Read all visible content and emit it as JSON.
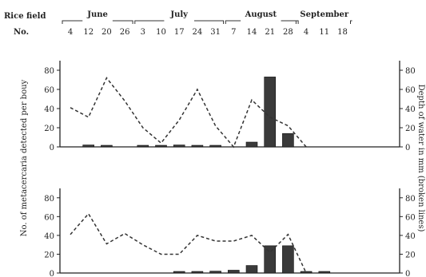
{
  "header": {
    "row_label_line1": "Rice field",
    "row_label_line2": "No.",
    "months": [
      "June",
      "July",
      "August",
      "September"
    ]
  },
  "y_label_left": "No. of metacercaria detected per bouy",
  "y_label_right": "Depth of water in mm (broken lines)",
  "chart_data": [
    {
      "type": "bar",
      "panel": "upper",
      "categories": [
        "4",
        "12",
        "20",
        "26",
        "3",
        "10",
        "17",
        "24",
        "31",
        "7",
        "14",
        "21",
        "28",
        "4",
        "11",
        "18"
      ],
      "category_months": [
        "June",
        "June",
        "June",
        "June",
        "July",
        "July",
        "July",
        "July",
        "July",
        "August",
        "August",
        "August",
        "August",
        "September",
        "September",
        "September"
      ],
      "yticks": [
        0,
        20,
        40,
        60,
        80
      ],
      "y2ticks": [
        0,
        20,
        40,
        60,
        80
      ],
      "ylim": [
        0,
        90
      ],
      "series": [
        {
          "kind": "bar",
          "values": [
            0,
            2,
            1,
            0,
            1,
            1,
            2,
            1,
            1,
            0,
            5,
            73,
            14,
            0,
            0,
            0
          ]
        },
        {
          "kind": "dashed-line",
          "values": [
            41,
            31,
            72,
            48,
            20,
            4,
            28,
            60,
            22,
            0,
            49,
            31,
            22,
            0,
            null,
            null
          ]
        }
      ]
    },
    {
      "type": "bar",
      "panel": "lower",
      "categories": [
        "4",
        "12",
        "20",
        "26",
        "3",
        "10",
        "17",
        "24",
        "31",
        "7",
        "14",
        "21",
        "28",
        "4",
        "11",
        "18"
      ],
      "yticks": [
        0,
        20,
        40,
        60,
        80
      ],
      "y2ticks": [
        0,
        20,
        40,
        60,
        80
      ],
      "ylim": [
        0,
        90
      ],
      "series": [
        {
          "kind": "bar",
          "values": [
            0,
            0,
            0,
            0,
            0,
            0,
            1,
            1,
            2,
            3,
            8,
            29,
            29,
            1,
            1,
            0
          ]
        },
        {
          "kind": "dashed-line",
          "values": [
            41,
            63,
            31,
            42,
            30,
            20,
            20,
            40,
            34,
            34,
            40,
            22,
            41,
            0,
            null,
            null
          ]
        }
      ]
    }
  ]
}
